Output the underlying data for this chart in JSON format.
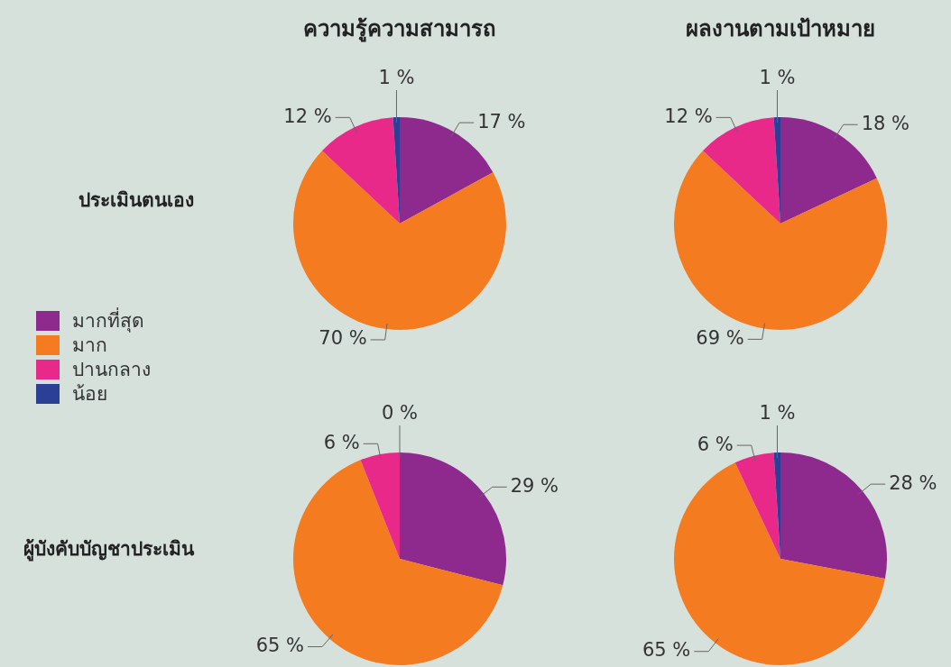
{
  "chart_data": [
    {
      "type": "pie",
      "title": "ความรู้ความสามารถ",
      "annotations": [
        "ประเมินตนเอง"
      ],
      "categories": [
        "มากที่สุด",
        "มาก",
        "ปานกลาง",
        "น้อย"
      ],
      "values": [
        17,
        70,
        12,
        1
      ],
      "value_labels": [
        "17 %",
        "70 %",
        "12 %",
        "1 %"
      ],
      "colors": [
        "#8e2a8e",
        "#f47b20",
        "#e8298a",
        "#2b3f96"
      ],
      "legend": "left"
    },
    {
      "type": "pie",
      "title": "ผลงานตามเป้าหมาย",
      "values": [
        18,
        69,
        12,
        1
      ],
      "value_labels": [
        "18 %",
        "69 %",
        "12 %",
        "1 %"
      ],
      "colors": [
        "#8e2a8e",
        "#f47b20",
        "#e8298a",
        "#2b3f96"
      ]
    },
    {
      "type": "pie",
      "annotations": [
        "ผู้บังคับบัญชาประเมิน"
      ],
      "values": [
        29,
        65,
        6,
        0
      ],
      "value_labels": [
        "29 %",
        "65 %",
        "6 %",
        "0 %"
      ],
      "colors": [
        "#8e2a8e",
        "#f47b20",
        "#e8298a",
        "#2b3f96"
      ]
    },
    {
      "type": "pie",
      "values": [
        28,
        65,
        6,
        1
      ],
      "value_labels": [
        "28 %",
        "65 %",
        "6 %",
        "1 %"
      ],
      "colors": [
        "#8e2a8e",
        "#f47b20",
        "#e8298a",
        "#2b3f96"
      ]
    }
  ]
}
